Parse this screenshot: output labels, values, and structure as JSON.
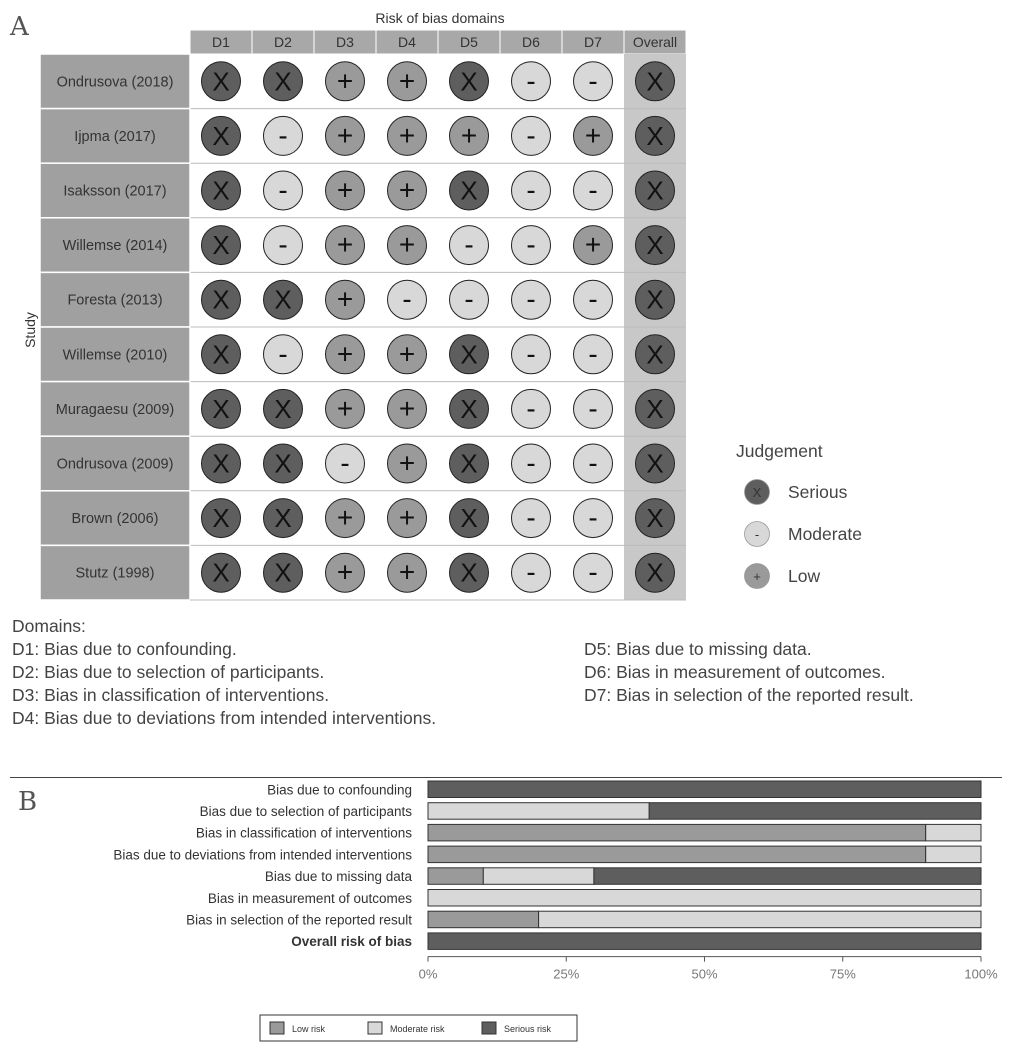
{
  "panel_a": {
    "letter": "A",
    "top_title": "Risk of bias domains",
    "y_title": "Study",
    "domain_headers": [
      "D1",
      "D2",
      "D3",
      "D4",
      "D5",
      "D6",
      "D7",
      "Overall"
    ],
    "studies": [
      {
        "name": "Ondrusova (2018)",
        "judgements": [
          "X",
          "X",
          "+",
          "+",
          "X",
          "-",
          "-",
          "X"
        ]
      },
      {
        "name": "Ijpma (2017)",
        "judgements": [
          "X",
          "-",
          "+",
          "+",
          "+",
          "-",
          "+",
          "X"
        ]
      },
      {
        "name": "Isaksson (2017)",
        "judgements": [
          "X",
          "-",
          "+",
          "+",
          "X",
          "-",
          "-",
          "X"
        ]
      },
      {
        "name": "Willemse (2014)",
        "judgements": [
          "X",
          "-",
          "+",
          "+",
          "-",
          "-",
          "+",
          "X"
        ]
      },
      {
        "name": "Foresta (2013)",
        "judgements": [
          "X",
          "X",
          "+",
          "-",
          "-",
          "-",
          "-",
          "X"
        ]
      },
      {
        "name": "Willemse (2010)",
        "judgements": [
          "X",
          "-",
          "+",
          "+",
          "X",
          "-",
          "-",
          "X"
        ]
      },
      {
        "name": "Muragaesu (2009)",
        "judgements": [
          "X",
          "X",
          "+",
          "+",
          "X",
          "-",
          "-",
          "X"
        ]
      },
      {
        "name": "Ondrusova (2009)",
        "judgements": [
          "X",
          "X",
          "-",
          "+",
          "X",
          "-",
          "-",
          "X"
        ]
      },
      {
        "name": "Brown (2006)",
        "judgements": [
          "X",
          "X",
          "+",
          "+",
          "X",
          "-",
          "-",
          "X"
        ]
      },
      {
        "name": "Stutz (1998)",
        "judgements": [
          "X",
          "X",
          "+",
          "+",
          "X",
          "-",
          "-",
          "X"
        ]
      }
    ],
    "legend": {
      "title": "Judgement",
      "items": [
        {
          "symbol": "X",
          "label": "Serious",
          "color": "#5e5e5e"
        },
        {
          "symbol": "-",
          "label": "Moderate",
          "color": "#d8d8d8"
        },
        {
          "symbol": "+",
          "label": "Low",
          "color": "#9a9a9a"
        }
      ]
    },
    "domains_heading": "Domains:",
    "domains_col1": [
      "D1: Bias due to confounding.",
      "D2: Bias due to selection of participants.",
      "D3: Bias in classification of interventions.",
      "D4: Bias due to deviations from intended interventions."
    ],
    "domains_col2": [
      "D5: Bias due to missing data.",
      "D6: Bias in measurement of outcomes.",
      "D7: Bias in selection of the reported result."
    ]
  },
  "panel_b": {
    "letter": "B",
    "legend": [
      "Low risk",
      "Moderate risk",
      "Serious risk"
    ]
  },
  "colors": {
    "serious": "#5e5e5e",
    "moderate": "#d8d8d8",
    "low": "#9a9a9a",
    "header_fill": "#a8a8a8",
    "study_fill": "#a0a0a0",
    "overall_fill": "#c8c8c8"
  },
  "chart_data": {
    "type": "bar",
    "orientation": "horizontal",
    "stacked": true,
    "categories": [
      "Bias due to confounding",
      "Bias due to selection of participants",
      "Bias in classification of interventions",
      "Bias due to deviations from intended interventions",
      "Bias due to missing data",
      "Bias in measurement of outcomes",
      "Bias in selection of the reported result",
      "Overall risk of bias"
    ],
    "series": [
      {
        "name": "Low risk",
        "values": [
          0,
          0,
          90,
          90,
          10,
          0,
          20,
          0
        ]
      },
      {
        "name": "Moderate risk",
        "values": [
          0,
          40,
          10,
          10,
          20,
          100,
          80,
          0
        ]
      },
      {
        "name": "Serious risk",
        "values": [
          100,
          60,
          0,
          0,
          70,
          0,
          0,
          100
        ]
      }
    ],
    "xticks": [
      "0%",
      "25%",
      "50%",
      "75%",
      "100%"
    ],
    "xlim": [
      0,
      100
    ],
    "legend_position": "bottom",
    "grid": false
  }
}
